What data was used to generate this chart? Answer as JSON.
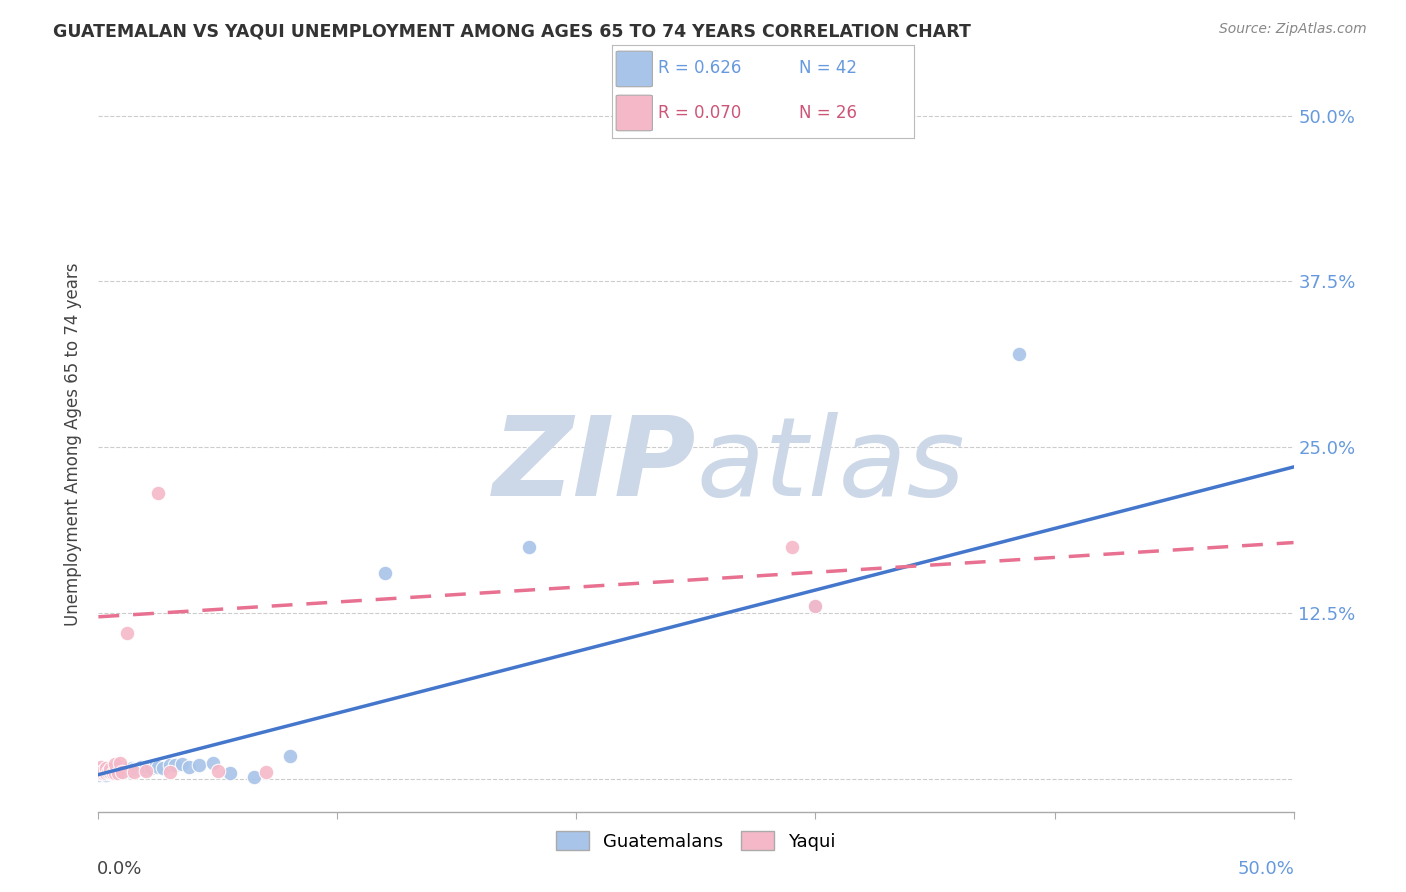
{
  "title": "GUATEMALAN VS YAQUI UNEMPLOYMENT AMONG AGES 65 TO 74 YEARS CORRELATION CHART",
  "source": "Source: ZipAtlas.com",
  "ylabel": "Unemployment Among Ages 65 to 74 years",
  "legend_blue_R": "R = 0.626",
  "legend_blue_N": "N = 42",
  "legend_pink_R": "R = 0.070",
  "legend_pink_N": "N = 26",
  "legend_label_blue": "Guatemalans",
  "legend_label_pink": "Yaqui",
  "blue_scatter_color": "#a8c4e8",
  "pink_scatter_color": "#f5b8c8",
  "blue_line_color": "#4477cc",
  "pink_line_color": "#e87090",
  "right_tick_color": "#6699dd",
  "watermark_color": "#ccd8e8",
  "background_color": "#ffffff",
  "grid_color": "#cccccc",
  "xlim": [
    0.0,
    0.5
  ],
  "ylim": [
    -0.025,
    0.53
  ],
  "ytick_values": [
    0.0,
    0.125,
    0.25,
    0.375,
    0.5
  ],
  "ytick_labels": [
    "",
    "12.5%",
    "25.0%",
    "37.5%",
    "50.0%"
  ],
  "blue_line_x": [
    0.0,
    0.5
  ],
  "blue_line_y": [
    0.003,
    0.235
  ],
  "pink_line_x": [
    0.0,
    0.5
  ],
  "pink_line_y": [
    0.122,
    0.178
  ],
  "guatemalan_x": [
    0.0,
    0.001,
    0.002,
    0.003,
    0.003,
    0.004,
    0.005,
    0.005,
    0.006,
    0.007,
    0.008,
    0.008,
    0.009,
    0.01,
    0.01,
    0.011,
    0.012,
    0.013,
    0.014,
    0.015,
    0.016,
    0.017,
    0.018,
    0.019,
    0.02,
    0.022,
    0.024,
    0.025,
    0.027,
    0.03,
    0.032,
    0.035,
    0.038,
    0.042,
    0.048,
    0.055,
    0.065,
    0.08,
    0.12,
    0.18,
    0.3,
    0.385
  ],
  "guatemalan_y": [
    0.003,
    0.004,
    0.004,
    0.005,
    0.003,
    0.004,
    0.005,
    0.006,
    0.004,
    0.005,
    0.004,
    0.006,
    0.005,
    0.006,
    0.007,
    0.005,
    0.007,
    0.006,
    0.008,
    0.007,
    0.007,
    0.008,
    0.009,
    0.007,
    0.009,
    0.008,
    0.01,
    0.009,
    0.008,
    0.01,
    0.01,
    0.011,
    0.009,
    0.01,
    0.012,
    0.004,
    0.001,
    0.017,
    0.155,
    0.175,
    0.13,
    0.32
  ],
  "yaqui_x": [
    0.0,
    0.0,
    0.001,
    0.001,
    0.002,
    0.002,
    0.003,
    0.003,
    0.004,
    0.005,
    0.005,
    0.006,
    0.007,
    0.007,
    0.008,
    0.009,
    0.01,
    0.012,
    0.015,
    0.02,
    0.025,
    0.03,
    0.05,
    0.07,
    0.29,
    0.3
  ],
  "yaqui_y": [
    0.004,
    0.007,
    0.005,
    0.009,
    0.004,
    0.006,
    0.004,
    0.008,
    0.005,
    0.005,
    0.007,
    0.004,
    0.004,
    0.011,
    0.004,
    0.012,
    0.005,
    0.11,
    0.005,
    0.006,
    0.215,
    0.005,
    0.006,
    0.005,
    0.175,
    0.13
  ]
}
